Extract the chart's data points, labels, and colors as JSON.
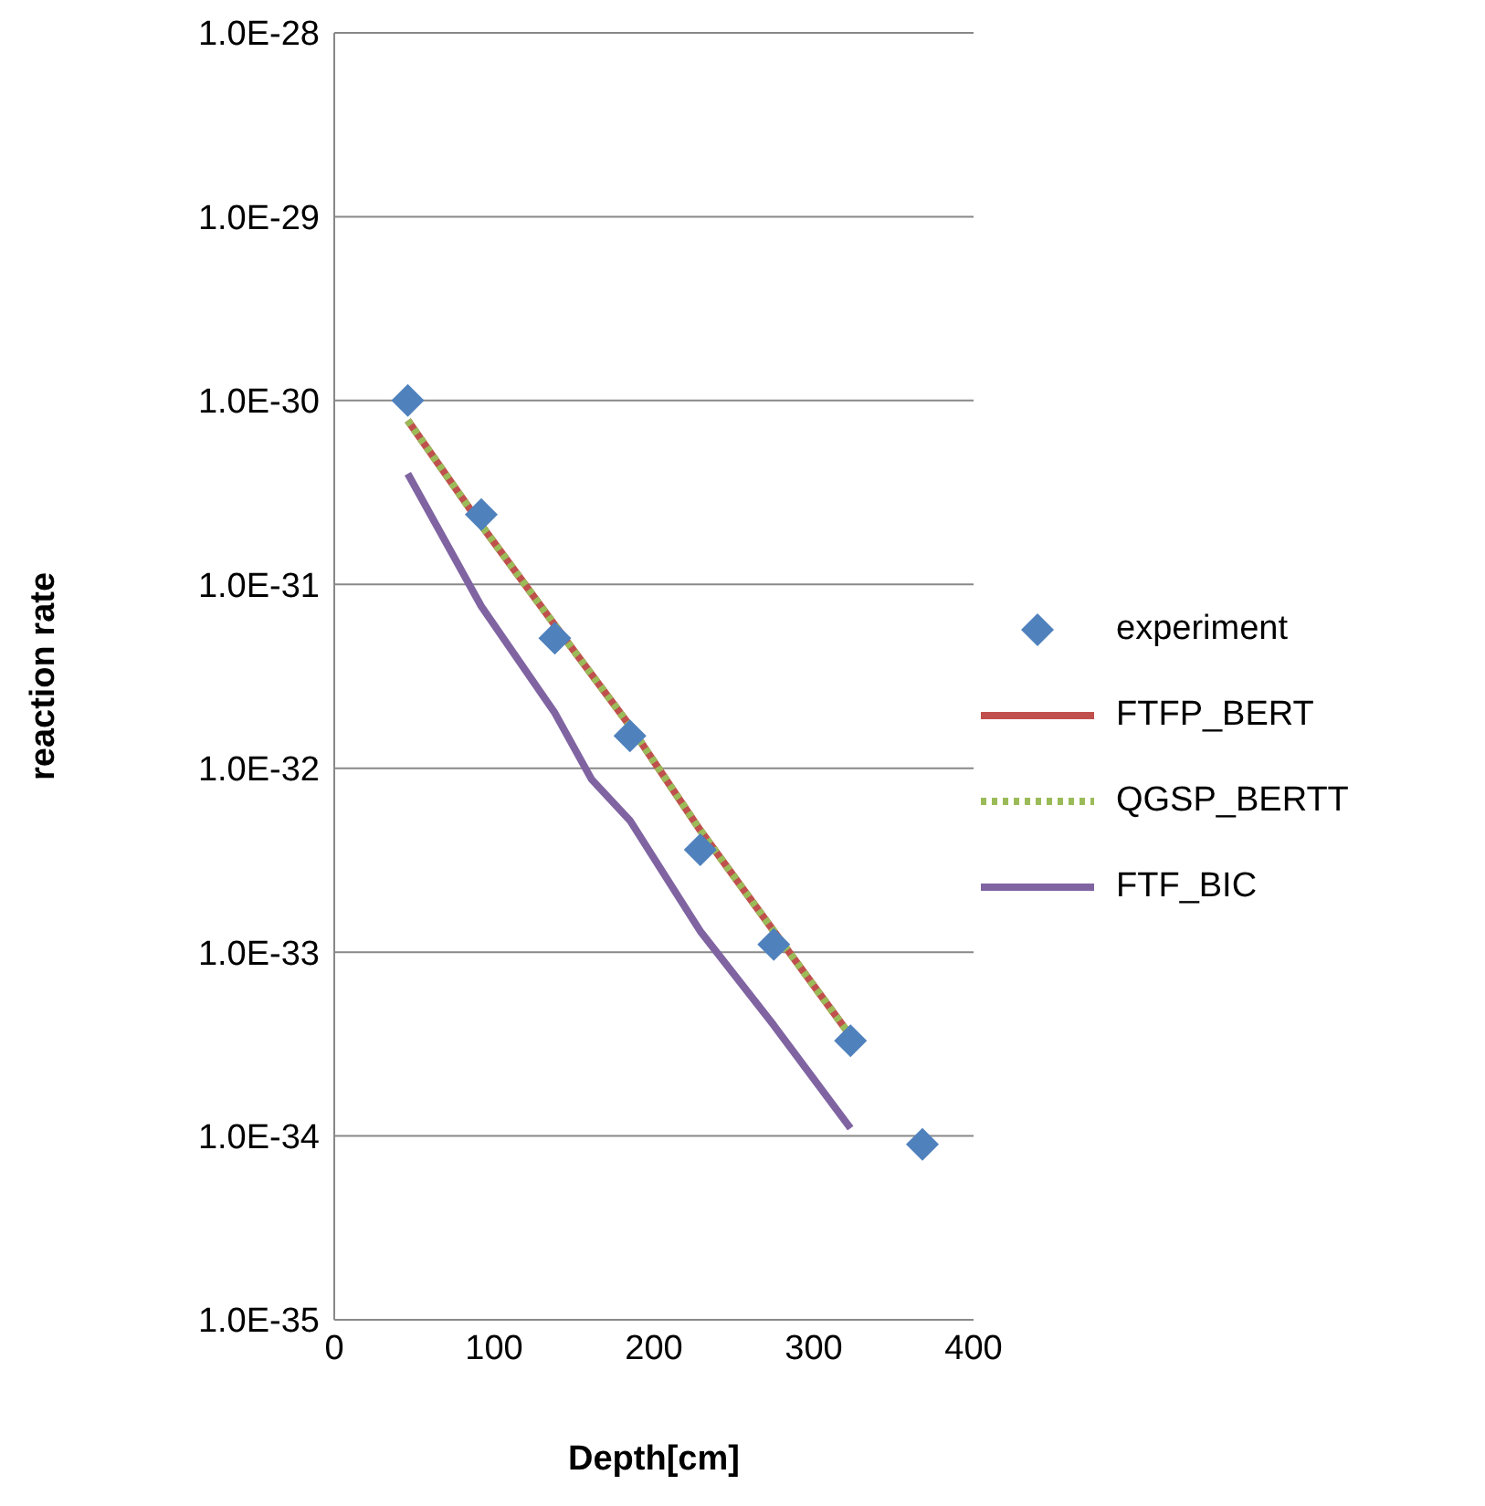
{
  "chart_data": {
    "type": "line",
    "xlabel": "Depth[cm]",
    "ylabel": "reaction rate",
    "log": "y",
    "grid": "y",
    "legend": "right",
    "xlim": [
      0,
      400
    ],
    "xticks": [
      0,
      100,
      200,
      300,
      400
    ],
    "ylim": [
      1e-35,
      1e-28
    ],
    "yticks": [
      {
        "value": 1e-35,
        "label": "1.0E-35"
      },
      {
        "value": 1e-34,
        "label": "1.0E-34"
      },
      {
        "value": 1e-33,
        "label": "1.0E-33"
      },
      {
        "value": 1e-32,
        "label": "1.0E-32"
      },
      {
        "value": 1e-31,
        "label": "1.0E-31"
      },
      {
        "value": 1e-30,
        "label": "1.0E-30"
      },
      {
        "value": 1e-29,
        "label": "1.0E-29"
      },
      {
        "value": 1e-28,
        "label": "1.0E-28"
      }
    ],
    "series": [
      {
        "name": "experiment",
        "type": "scatter",
        "marker": "diamond",
        "color": "#4f81bd",
        "x": [
          46,
          92,
          138,
          185,
          229,
          275,
          323,
          368
        ],
        "values": [
          1e-30,
          2.4e-31,
          5.1e-32,
          1.5e-32,
          3.6e-33,
          1.1e-33,
          3.3e-34,
          9e-35
        ]
      },
      {
        "name": "FTFP_BERT",
        "marker": "none",
        "line_style": "solid",
        "color": "#c0504d",
        "x": [
          46,
          92,
          138,
          185,
          229,
          275,
          323
        ],
        "values": [
          7.8e-31,
          2.1e-31,
          6e-32,
          1.7e-32,
          4.6e-33,
          1.3e-33,
          3.5e-34
        ]
      },
      {
        "name": "QGSP_BERTT",
        "marker": "none",
        "line_style": "dotted",
        "color": "#9bbb59",
        "x": [
          46,
          92,
          138,
          185,
          229,
          275,
          323
        ],
        "values": [
          7.8e-31,
          2.1e-31,
          6e-32,
          1.7e-32,
          4.6e-33,
          1.3e-33,
          3.5e-34
        ]
      },
      {
        "name": "FTF_BIC",
        "marker": "none",
        "line_style": "solid",
        "color": "#8064a2",
        "x": [
          46,
          92,
          138,
          161,
          185,
          229,
          275,
          323
        ],
        "values": [
          4e-31,
          7.6e-32,
          2e-32,
          8.7e-33,
          5.2e-33,
          1.3e-33,
          4e-34,
          1.1e-34
        ]
      }
    ]
  }
}
